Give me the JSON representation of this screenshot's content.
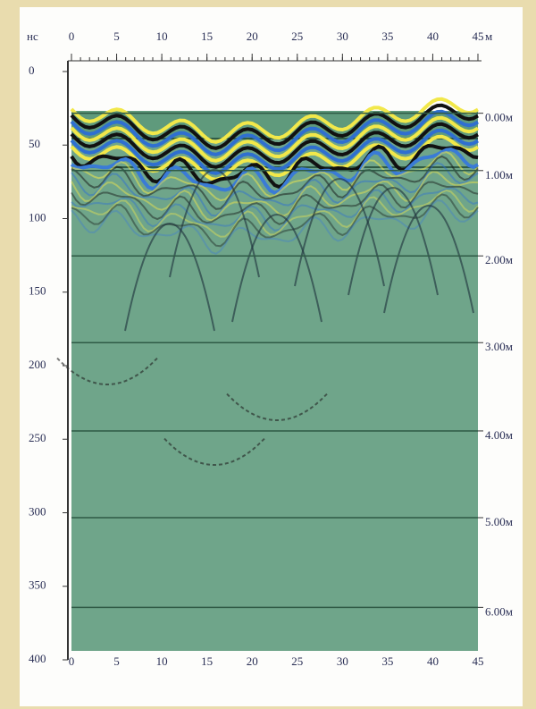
{
  "chart_data": {
    "type": "radargram",
    "y_unit": "нс",
    "x_unit": "м",
    "xlim": [
      0,
      45
    ],
    "xticks": [
      0,
      5,
      10,
      15,
      20,
      25,
      30,
      35,
      40,
      45
    ],
    "x_minor_step": 1,
    "ylim": [
      0,
      400
    ],
    "yticks": [
      0,
      50,
      100,
      150,
      200,
      250,
      300,
      350,
      400
    ],
    "depth_ticks": [
      {
        "value": 32,
        "label": "0.00м"
      },
      {
        "value": 71,
        "label": "1.00м"
      },
      {
        "value": 129,
        "label": "2.00м"
      },
      {
        "value": 188,
        "label": "3.00м"
      },
      {
        "value": 248,
        "label": "4.00м"
      },
      {
        "value": 307,
        "label": "5.00м"
      },
      {
        "value": 368,
        "label": "6.00м"
      }
    ]
  }
}
